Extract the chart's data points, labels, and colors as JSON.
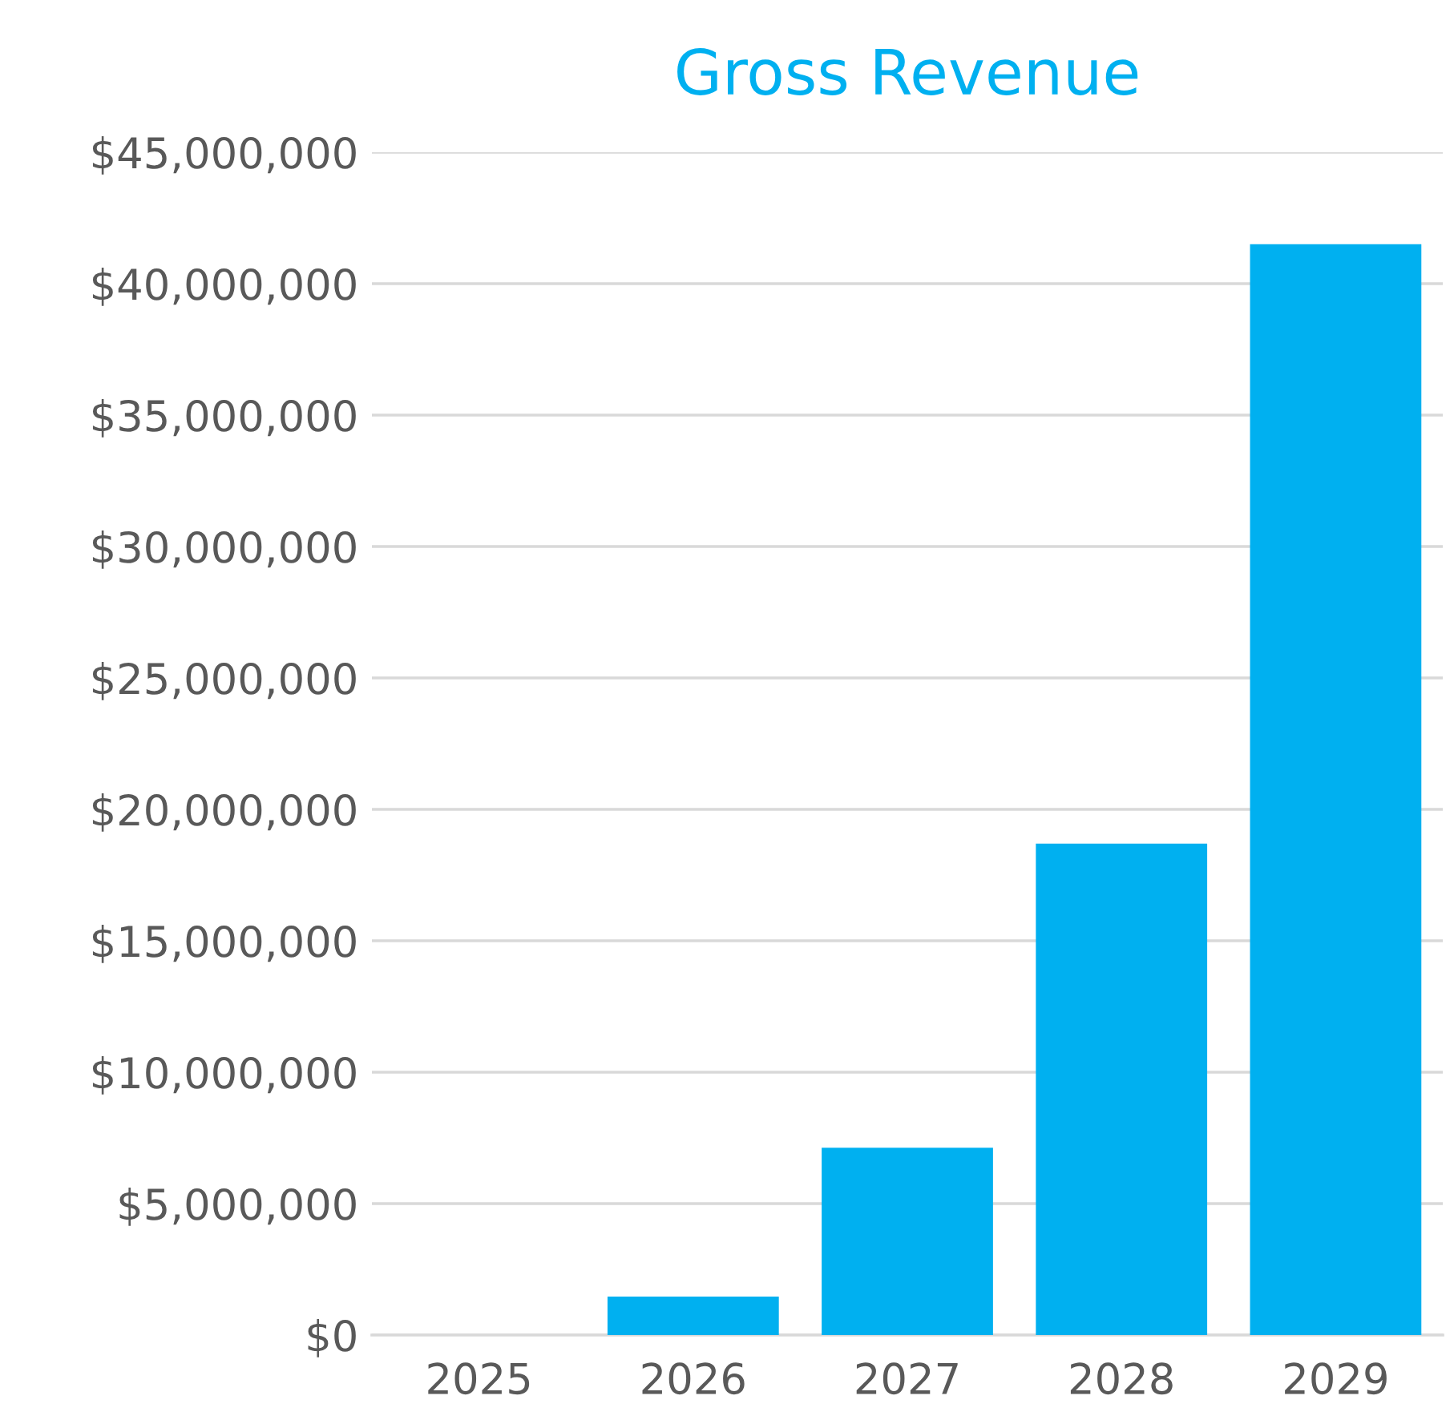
{
  "chart_data": {
    "type": "bar",
    "title": "Gross Revenue",
    "categories": [
      "2025",
      "2026",
      "2027",
      "2028",
      "2029"
    ],
    "values": [
      0,
      1460000,
      7130000,
      18700000,
      41500000
    ],
    "color": "#00b0f0",
    "ylim": [
      0,
      45000000
    ],
    "yticks": [
      {
        "value": 0,
        "label": "$0"
      },
      {
        "value": 5000000,
        "label": "$5,000,000"
      },
      {
        "value": 10000000,
        "label": "$10,000,000"
      },
      {
        "value": 15000000,
        "label": "$15,000,000"
      },
      {
        "value": 20000000,
        "label": "$20,000,000"
      },
      {
        "value": 25000000,
        "label": "$25,000,000"
      },
      {
        "value": 30000000,
        "label": "$30,000,000"
      },
      {
        "value": 35000000,
        "label": "$35,000,000"
      },
      {
        "value": 40000000,
        "label": "$40,000,000"
      },
      {
        "value": 45000000,
        "label": "$45,000,000"
      }
    ],
    "grid": "y",
    "legend": false
  }
}
